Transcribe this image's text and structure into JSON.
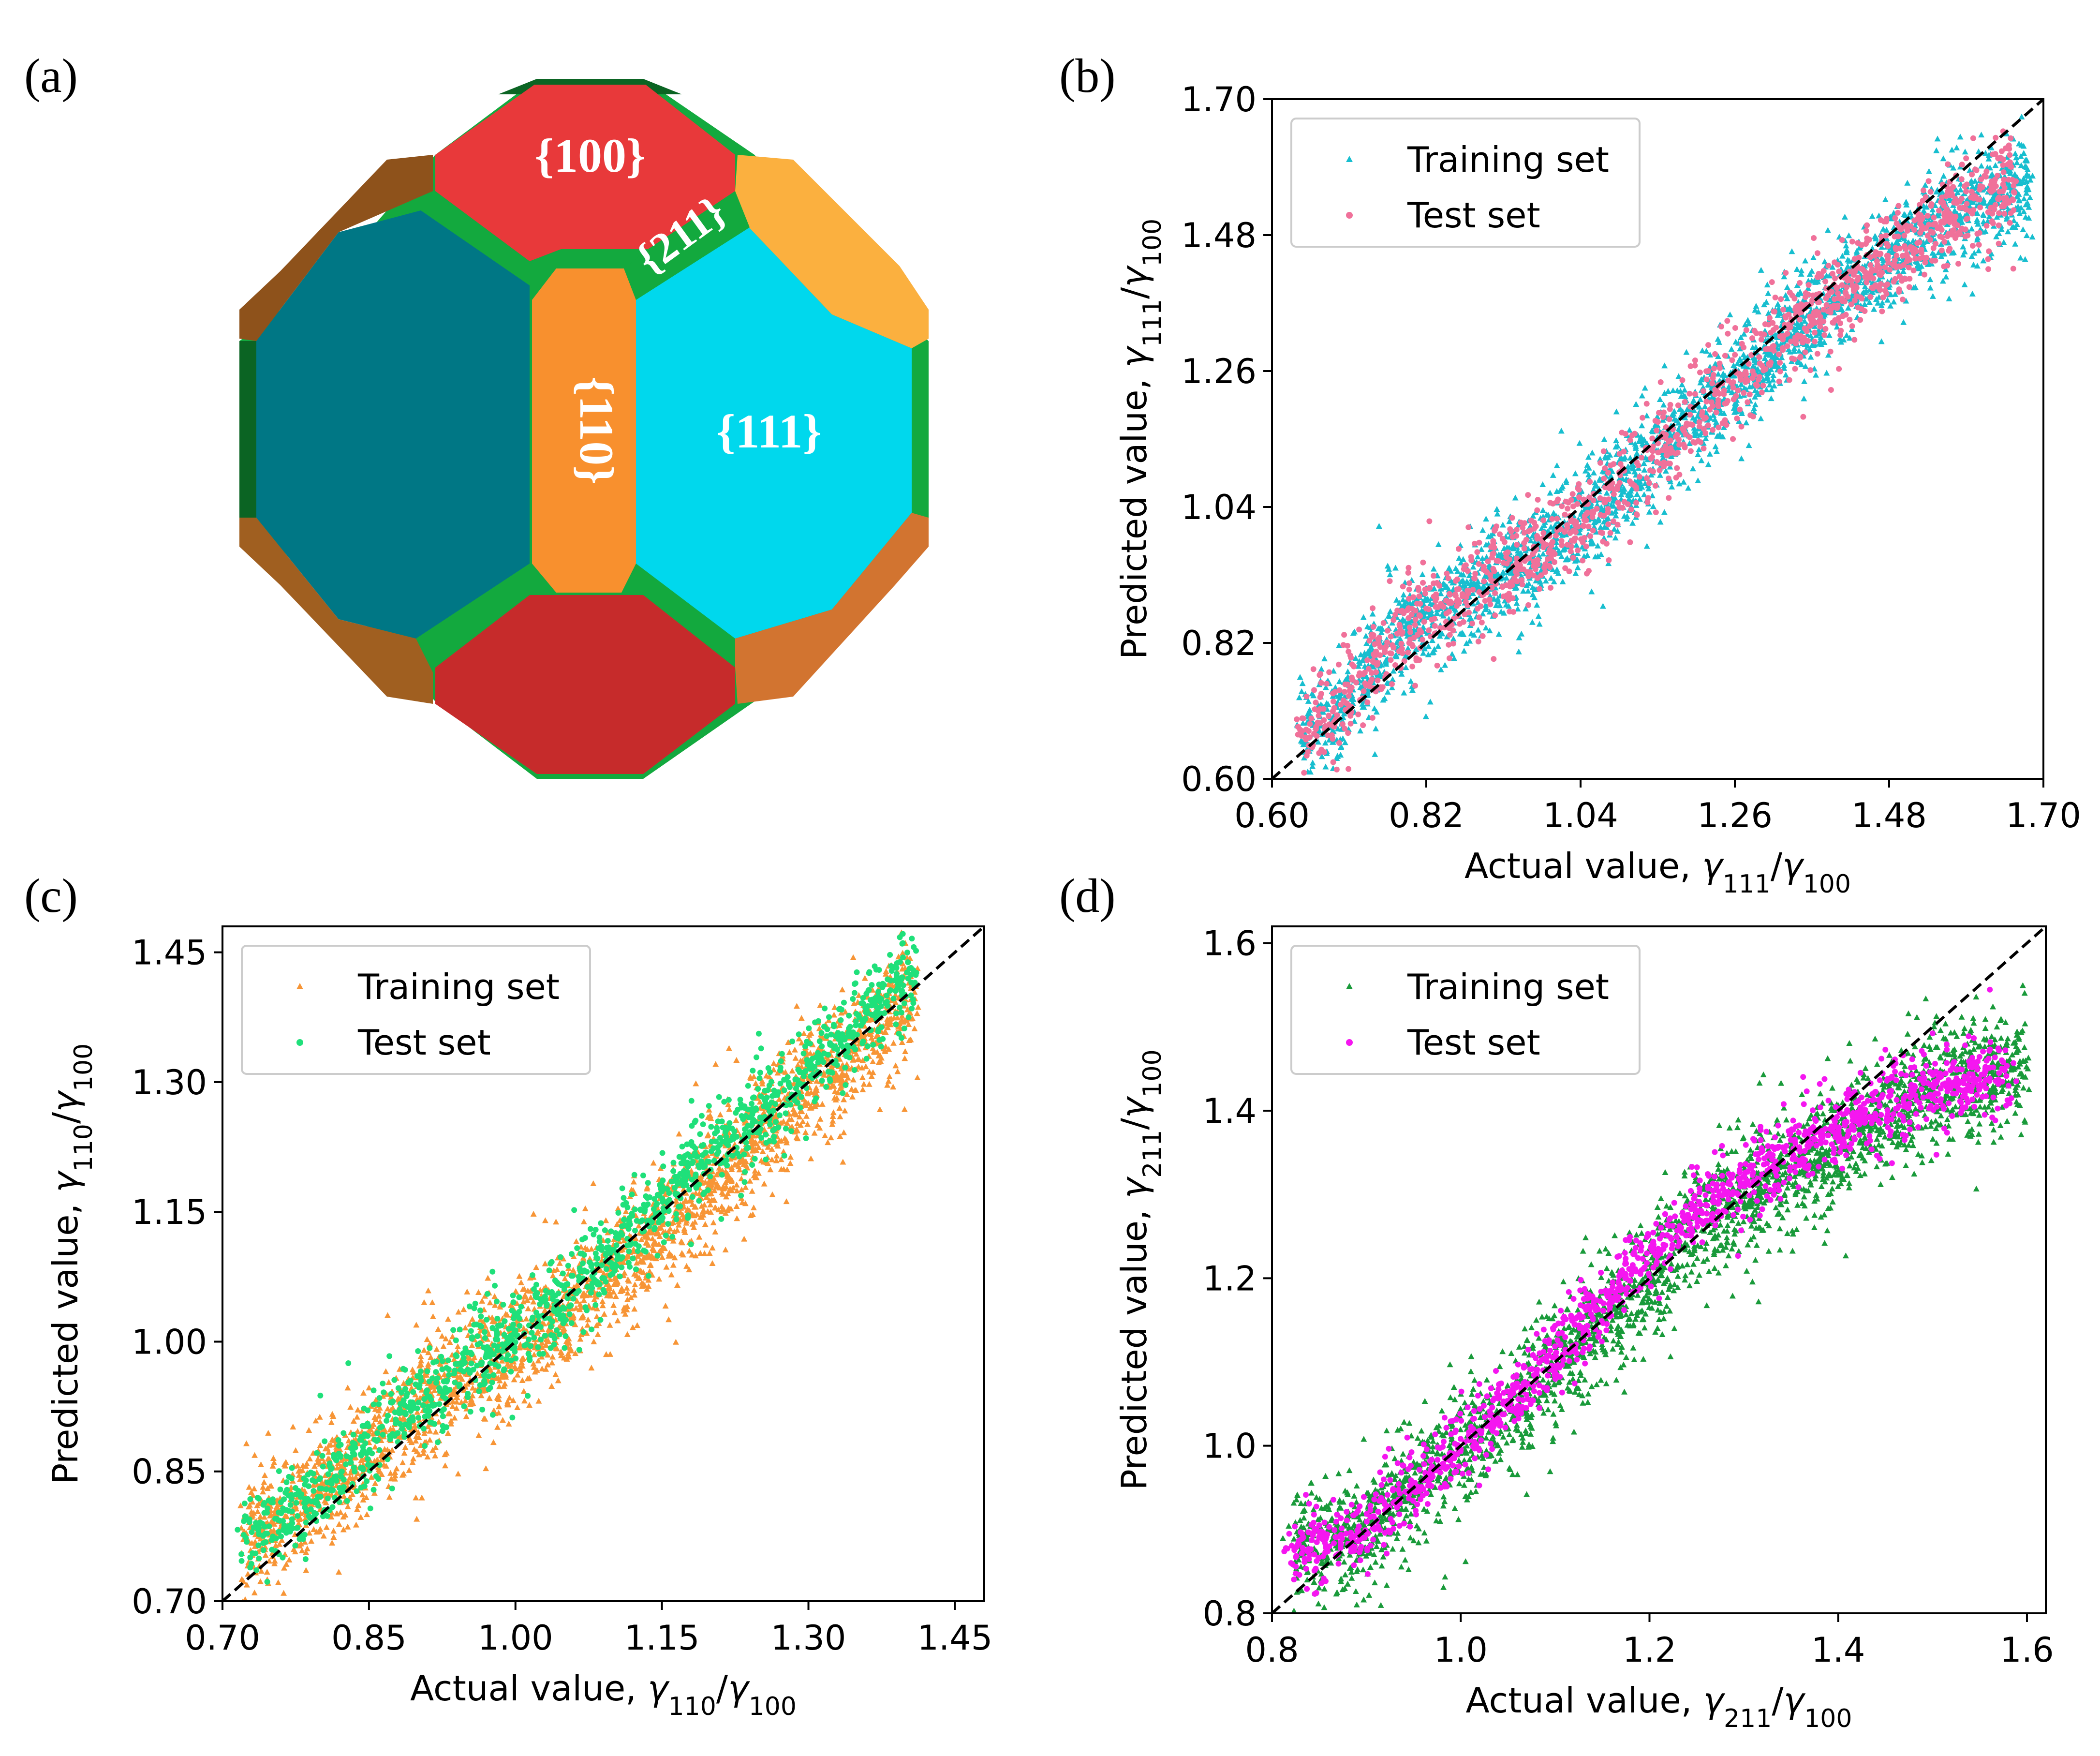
{
  "panels": {
    "a": {
      "label": "(a)",
      "facets": {
        "f100": "{100}",
        "f211": "{211}",
        "f110": "{110}",
        "f111": "{111}"
      },
      "colors": {
        "c100": "#e8393a",
        "c100_dark": "#c62b2b",
        "c111": "#00d8ed",
        "c111_dark": "#007785",
        "c110": "#f8902e",
        "c110_dark_a": "#8e521b",
        "c110_dark_b": "#a05f20",
        "c211": "#13a93e",
        "c211_dark": "#0b6423"
      }
    }
  },
  "chart_data": [
    {
      "id": "b",
      "panel_label": "(b)",
      "type": "scatter",
      "xlim": [
        0.6,
        1.7
      ],
      "ylim": [
        0.6,
        1.7
      ],
      "xticks": [
        "0.60",
        "0.82",
        "1.04",
        "1.26",
        "1.48",
        "1.70"
      ],
      "yticks": [
        "0.60",
        "0.82",
        "1.04",
        "1.26",
        "1.48",
        "1.70"
      ],
      "xlabel_prefix": "Actual value,",
      "ylabel_prefix": "Predicted value,",
      "gamma_sub": "111",
      "ref_sub": "100",
      "diagonal": "y = x (dashed)",
      "legend": "top-left",
      "series": [
        {
          "name": "Training set",
          "marker": "triangle",
          "color": "#17becf",
          "trend": [
            [
              0.64,
              0.67
            ],
            [
              0.7,
              0.72
            ],
            [
              0.78,
              0.84
            ],
            [
              0.86,
              0.89
            ],
            [
              0.96,
              0.95
            ],
            [
              1.04,
              1.02
            ],
            [
              1.12,
              1.1
            ],
            [
              1.22,
              1.2
            ],
            [
              1.3,
              1.28
            ],
            [
              1.4,
              1.38
            ],
            [
              1.5,
              1.46
            ],
            [
              1.58,
              1.52
            ],
            [
              1.68,
              1.56
            ]
          ],
          "spread": 0.045
        },
        {
          "name": "Test set",
          "marker": "circle",
          "color": "#f0719a",
          "trend": [
            [
              0.64,
              0.68
            ],
            [
              0.7,
              0.72
            ],
            [
              0.78,
              0.84
            ],
            [
              0.86,
              0.89
            ],
            [
              0.96,
              0.95
            ],
            [
              1.04,
              1.02
            ],
            [
              1.12,
              1.1
            ],
            [
              1.22,
              1.2
            ],
            [
              1.3,
              1.28
            ],
            [
              1.4,
              1.38
            ],
            [
              1.5,
              1.46
            ],
            [
              1.58,
              1.52
            ],
            [
              1.66,
              1.57
            ]
          ],
          "spread": 0.04
        }
      ]
    },
    {
      "id": "c",
      "panel_label": "(c)",
      "type": "scatter",
      "xlim": [
        0.7,
        1.48
      ],
      "ylim": [
        0.7,
        1.48
      ],
      "xticks": [
        "0.70",
        "0.85",
        "1.00",
        "1.15",
        "1.30",
        "1.45"
      ],
      "yticks": [
        "0.70",
        "0.85",
        "1.00",
        "1.15",
        "1.30",
        "1.45"
      ],
      "xlabel_prefix": "Actual value,",
      "ylabel_prefix": "Predicted value,",
      "gamma_sub": "110",
      "ref_sub": "100",
      "diagonal": "y = x (dashed)",
      "legend": "top-left",
      "series": [
        {
          "name": "Training set",
          "marker": "triangle",
          "color": "#f79536",
          "trend": [
            [
              0.72,
              0.77
            ],
            [
              0.78,
              0.81
            ],
            [
              0.84,
              0.87
            ],
            [
              0.9,
              0.93
            ],
            [
              0.96,
              0.97
            ],
            [
              1.02,
              1.01
            ],
            [
              1.08,
              1.06
            ],
            [
              1.14,
              1.12
            ],
            [
              1.2,
              1.19
            ],
            [
              1.26,
              1.25
            ],
            [
              1.32,
              1.31
            ],
            [
              1.38,
              1.37
            ],
            [
              1.41,
              1.4
            ]
          ],
          "spread": 0.035
        },
        {
          "name": "Test set",
          "marker": "circle",
          "color": "#1fe07a",
          "trend": [
            [
              0.72,
              0.77
            ],
            [
              0.78,
              0.81
            ],
            [
              0.84,
              0.87
            ],
            [
              0.9,
              0.93
            ],
            [
              0.96,
              0.98
            ],
            [
              1.02,
              1.02
            ],
            [
              1.08,
              1.08
            ],
            [
              1.14,
              1.15
            ],
            [
              1.2,
              1.22
            ],
            [
              1.26,
              1.27
            ],
            [
              1.32,
              1.33
            ],
            [
              1.38,
              1.4
            ],
            [
              1.41,
              1.43
            ]
          ],
          "spread": 0.025
        }
      ]
    },
    {
      "id": "d",
      "panel_label": "(d)",
      "type": "scatter",
      "xlim": [
        0.8,
        1.62
      ],
      "ylim": [
        0.8,
        1.62
      ],
      "xticks": [
        "0.8",
        "1.0",
        "1.2",
        "1.4",
        "1.6"
      ],
      "yticks": [
        "0.8",
        "1.0",
        "1.2",
        "1.4",
        "1.6"
      ],
      "xlabel_prefix": "Actual value,",
      "ylabel_prefix": "Predicted value,",
      "gamma_sub": "211",
      "ref_sub": "100",
      "diagonal": "y = x (dashed)",
      "legend": "top-left",
      "series": [
        {
          "name": "Training set",
          "marker": "triangle",
          "color": "#199a3a",
          "trend": [
            [
              0.82,
              0.88
            ],
            [
              0.86,
              0.89
            ],
            [
              0.9,
              0.9
            ],
            [
              0.95,
              0.95
            ],
            [
              1.0,
              1.0
            ],
            [
              1.06,
              1.05
            ],
            [
              1.12,
              1.12
            ],
            [
              1.18,
              1.18
            ],
            [
              1.24,
              1.25
            ],
            [
              1.3,
              1.3
            ],
            [
              1.38,
              1.35
            ],
            [
              1.46,
              1.4
            ],
            [
              1.54,
              1.44
            ],
            [
              1.6,
              1.45
            ]
          ],
          "spread": 0.035
        },
        {
          "name": "Test set",
          "marker": "circle",
          "color": "#f516f0",
          "trend": [
            [
              0.82,
              0.88
            ],
            [
              0.86,
              0.89
            ],
            [
              0.9,
              0.9
            ],
            [
              0.95,
              0.95
            ],
            [
              1.0,
              1.0
            ],
            [
              1.06,
              1.06
            ],
            [
              1.12,
              1.14
            ],
            [
              1.18,
              1.21
            ],
            [
              1.24,
              1.27
            ],
            [
              1.3,
              1.32
            ],
            [
              1.36,
              1.36
            ],
            [
              1.44,
              1.4
            ],
            [
              1.52,
              1.43
            ],
            [
              1.58,
              1.45
            ]
          ],
          "spread": 0.022
        }
      ]
    }
  ]
}
